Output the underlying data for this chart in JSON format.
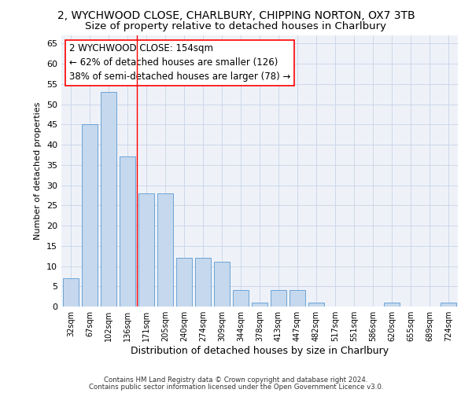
{
  "title": "2, WYCHWOOD CLOSE, CHARLBURY, CHIPPING NORTON, OX7 3TB",
  "subtitle": "Size of property relative to detached houses in Charlbury",
  "xlabel": "Distribution of detached houses by size in Charlbury",
  "ylabel": "Number of detached properties",
  "categories": [
    "32sqm",
    "67sqm",
    "102sqm",
    "136sqm",
    "171sqm",
    "205sqm",
    "240sqm",
    "274sqm",
    "309sqm",
    "344sqm",
    "378sqm",
    "413sqm",
    "447sqm",
    "482sqm",
    "517sqm",
    "551sqm",
    "586sqm",
    "620sqm",
    "655sqm",
    "689sqm",
    "724sqm"
  ],
  "values": [
    7,
    45,
    53,
    37,
    28,
    28,
    12,
    12,
    11,
    4,
    1,
    4,
    4,
    1,
    0,
    0,
    0,
    1,
    0,
    0,
    1
  ],
  "bar_color": "#c5d8ed",
  "bar_edgecolor": "#5b9bd5",
  "bar_width": 0.85,
  "ylim": [
    0,
    67
  ],
  "yticks": [
    0,
    5,
    10,
    15,
    20,
    25,
    30,
    35,
    40,
    45,
    50,
    55,
    60,
    65
  ],
  "vline_x": 3.5,
  "vline_color": "red",
  "annotation_text": "2 WYCHWOOD CLOSE: 154sqm\n← 62% of detached houses are smaller (126)\n38% of semi-detached houses are larger (78) →",
  "annotation_box_color": "white",
  "annotation_box_edgecolor": "red",
  "footer1": "Contains HM Land Registry data © Crown copyright and database right 2024.",
  "footer2": "Contains public sector information licensed under the Open Government Licence v3.0.",
  "bg_color": "#eef2f8",
  "grid_color": "#c8d4e8",
  "title_fontsize": 10,
  "subtitle_fontsize": 9.5,
  "ann_fontsize": 8.5
}
